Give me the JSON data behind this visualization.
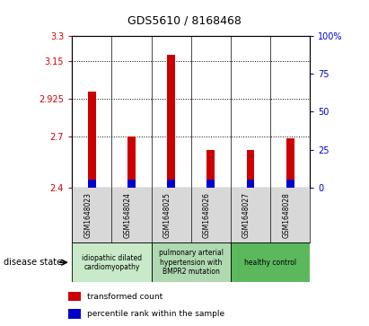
{
  "title": "GDS5610 / 8168468",
  "samples": [
    "GSM1648023",
    "GSM1648024",
    "GSM1648025",
    "GSM1648026",
    "GSM1648027",
    "GSM1648028"
  ],
  "transformed_count": [
    2.97,
    2.7,
    3.19,
    2.62,
    2.62,
    2.69
  ],
  "ylim_left": [
    2.4,
    3.3
  ],
  "ylim_right": [
    0,
    100
  ],
  "yticks_left": [
    2.4,
    2.7,
    2.925,
    3.15,
    3.3
  ],
  "ytick_labels_left": [
    "2.4",
    "2.7",
    "2.925",
    "3.15",
    "3.3"
  ],
  "yticks_right": [
    0,
    25,
    50,
    75,
    100
  ],
  "ytick_labels_right": [
    "0",
    "25",
    "50",
    "75",
    "100%"
  ],
  "grid_yticks": [
    2.7,
    2.925,
    3.15
  ],
  "bar_bottom": 2.4,
  "blue_bar_height": 0.045,
  "red_color": "#cc0000",
  "blue_color": "#0000cc",
  "bar_width": 0.2,
  "disease_groups": [
    {
      "label": "idiopathic dilated\ncardiomyopathy",
      "color": "#c8eac9"
    },
    {
      "label": "pulmonary arterial\nhypertension with\nBMPR2 mutation",
      "color": "#b0d9b2"
    },
    {
      "label": "healthy control",
      "color": "#5cb85c"
    }
  ],
  "legend_items": [
    {
      "label": "transformed count",
      "color": "#cc0000"
    },
    {
      "label": "percentile rank within the sample",
      "color": "#0000cc"
    }
  ],
  "disease_state_label": "disease state",
  "sample_bg_color": "#d8d8d8",
  "plot_bg_color": "#ffffff"
}
